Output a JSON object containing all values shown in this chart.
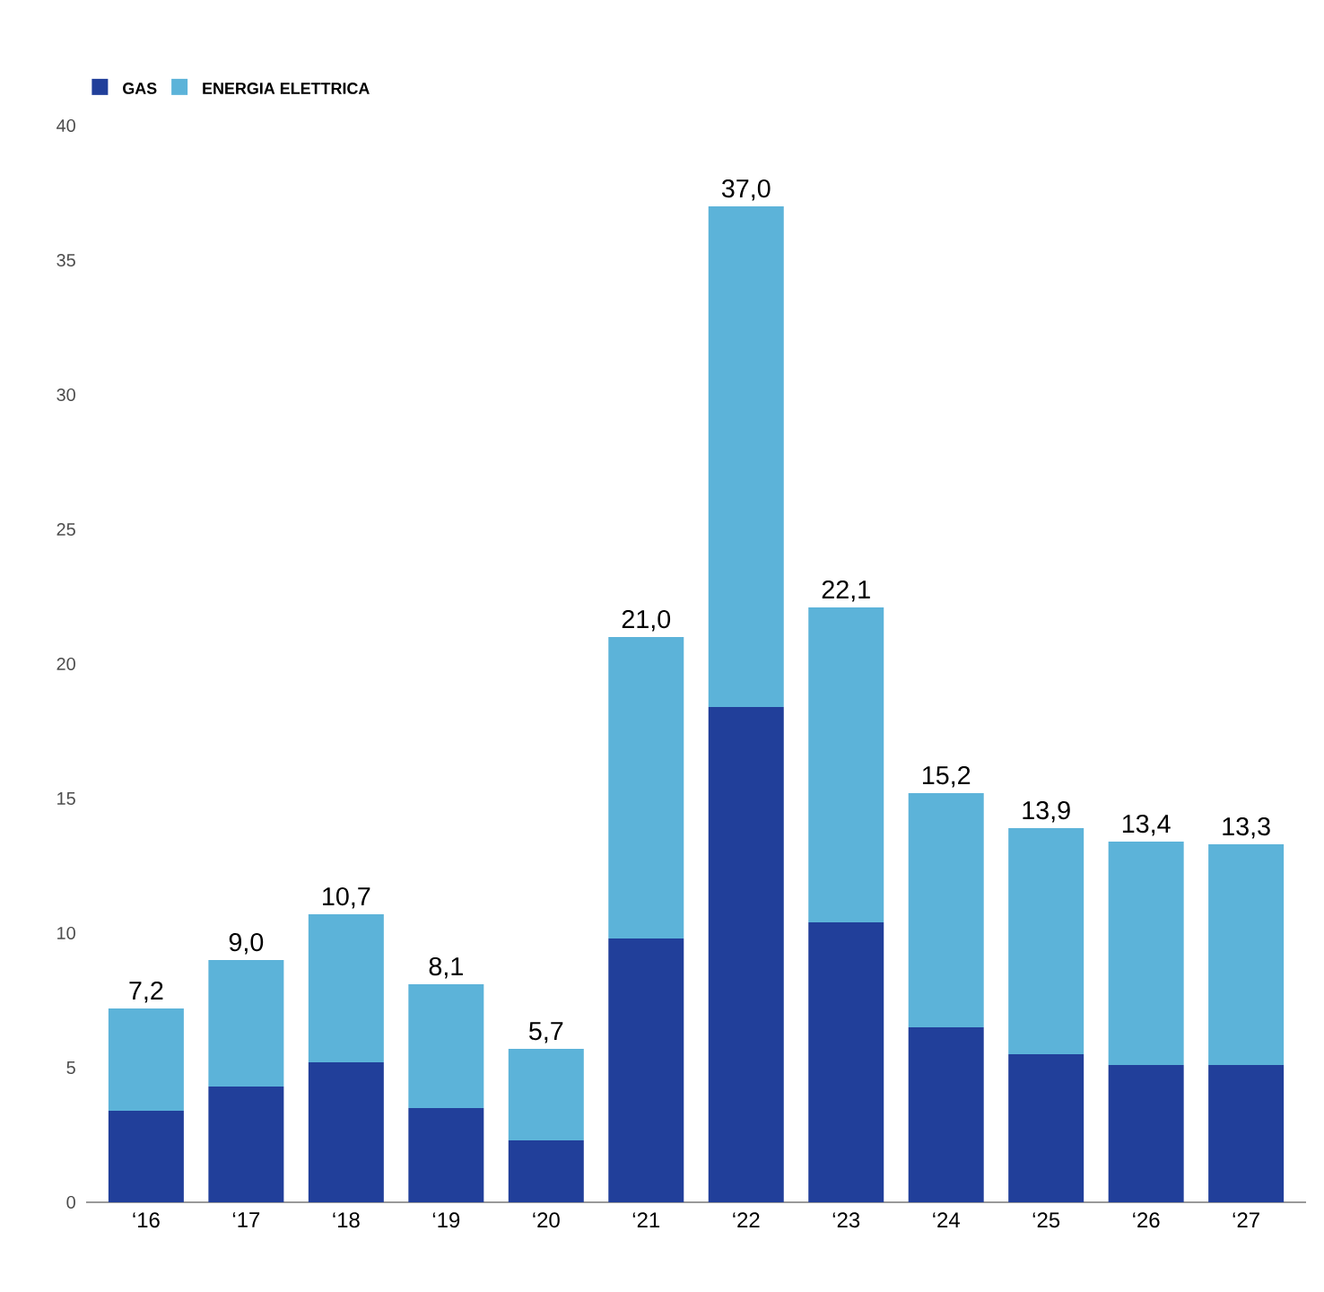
{
  "chart_data": {
    "type": "bar",
    "stacked": true,
    "categories": [
      "‘16",
      "‘17",
      "‘18",
      "‘19",
      "‘20",
      "‘21",
      "‘22",
      "‘23",
      "‘24",
      "‘25",
      "‘26",
      "‘27"
    ],
    "series": [
      {
        "name": "GAS",
        "color": "#213f9a",
        "values": [
          3.4,
          4.3,
          5.2,
          3.5,
          2.3,
          9.8,
          18.4,
          10.4,
          6.5,
          5.5,
          5.1,
          5.1
        ]
      },
      {
        "name": "ENERGIA ELETTRICA",
        "color": "#5cb3d9",
        "values": [
          3.8,
          4.7,
          5.5,
          4.6,
          3.4,
          11.2,
          18.6,
          11.7,
          8.7,
          8.4,
          8.3,
          8.2
        ]
      }
    ],
    "totals": [
      "7,2",
      "9,0",
      "10,7",
      "8,1",
      "5,7",
      "21,0",
      "37,0",
      "22,1",
      "15,2",
      "13,9",
      "13,4",
      "13,3"
    ],
    "ylim": [
      0,
      40
    ],
    "yticks": [
      0,
      5,
      10,
      15,
      20,
      25,
      30,
      35,
      40
    ],
    "legend": "top left",
    "grid": false
  }
}
